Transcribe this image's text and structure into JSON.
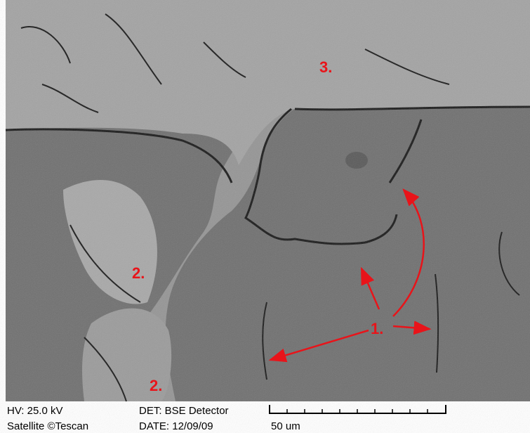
{
  "image": {
    "annotations": [
      "1.",
      "2.",
      "2.",
      "3."
    ]
  },
  "info": {
    "voltage": "HV: 25.0 kV",
    "vendor": "Satellite ©Tescan",
    "detector": "DET: BSE Detector",
    "date": "DATE: 12/09/09",
    "scale": "50 um"
  }
}
